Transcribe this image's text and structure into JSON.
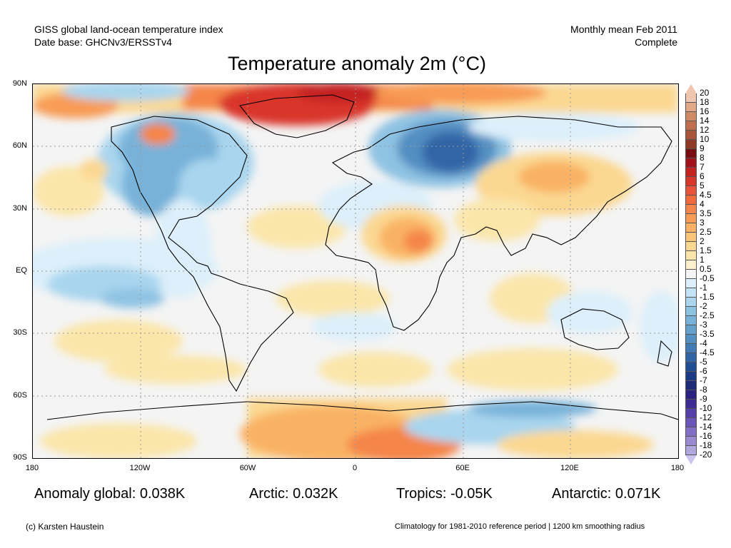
{
  "header": {
    "line1_left": "GISS global land-ocean temperature index",
    "line2_left": "Date base: GHCNv3/ERSSTv4",
    "line1_right": "Monthly mean Feb 2011",
    "line2_right": "Complete"
  },
  "title": "Temperature anomaly 2m (°C)",
  "axes": {
    "lat_labels": [
      "90N",
      "60N",
      "30N",
      "EQ",
      "30S",
      "60S",
      "90S"
    ],
    "lon_labels": [
      "180",
      "120W",
      "60W",
      "0",
      "60E",
      "120E",
      "180"
    ]
  },
  "colorbar": {
    "labels": [
      "20",
      "18",
      "16",
      "14",
      "12",
      "10",
      "9",
      "8",
      "7",
      "6",
      "5",
      "4.5",
      "4",
      "3.5",
      "3",
      "2.5",
      "2",
      "1.5",
      "1",
      "0.5",
      "-0.5",
      "-1",
      "-1.5",
      "-2",
      "-2.5",
      "-3",
      "-3.5",
      "-4",
      "-4.5",
      "-5",
      "-6",
      "-7",
      "-8",
      "-9",
      "-10",
      "-12",
      "-14",
      "-16",
      "-18",
      "-20"
    ],
    "colors": [
      "#f1c6b0",
      "#e2a887",
      "#cf8a68",
      "#bf6f4e",
      "#a9553a",
      "#8f3a27",
      "#7a0d12",
      "#a4111a",
      "#c42320",
      "#d9362c",
      "#e8533a",
      "#f06a3e",
      "#f5854a",
      "#f89b55",
      "#f9b263",
      "#fac57a",
      "#fbd892",
      "#fbe6aa",
      "#fdf1cc",
      "#f5f5f5",
      "#dceffa",
      "#c4e4f6",
      "#a9d5ee",
      "#8fc3e3",
      "#78b2d9",
      "#66a1cd",
      "#538fc2",
      "#427bb6",
      "#3165a6",
      "#224e95",
      "#1b3c85",
      "#1e2b78",
      "#2c2380",
      "#3d2d92",
      "#5440a6",
      "#6a56b8",
      "#8170c7",
      "#9a8ad4",
      "#b3a7e0"
    ],
    "top_arrow_color": "#f1c6b0",
    "bottom_arrow_color": "#cbc4ee"
  },
  "stats": {
    "global": "Anomaly global: 0.038K",
    "arctic": "Arctic: 0.032K",
    "tropics": "Tropics: -0.05K",
    "antarctic": "Antarctic: 0.071K"
  },
  "footer": {
    "left": "(c) Karsten Haustein",
    "right": "Climatology for 1981-2010 reference period | 1200 km smoothing radius"
  }
}
